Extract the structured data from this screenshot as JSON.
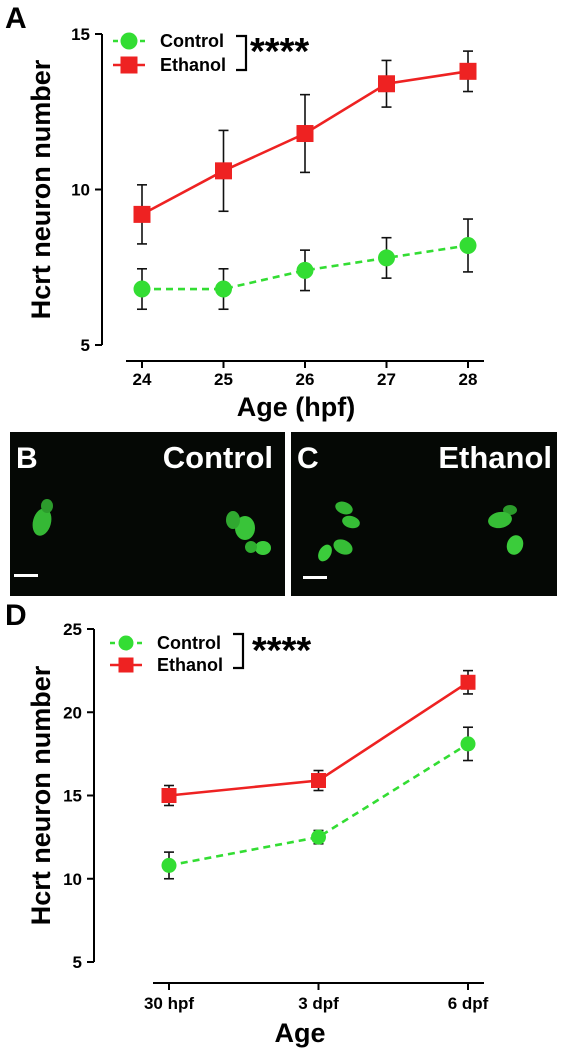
{
  "colors": {
    "control": "#33dd33",
    "ethanol": "#ee2222",
    "image_bg": "#050805",
    "neuron": "#39c439"
  },
  "panels": {
    "b_letter": "B",
    "b_label": "Control",
    "c_letter": "C",
    "c_label": "Ethanol"
  },
  "chart_data": [
    {
      "panel": "A",
      "type": "line",
      "categories": [
        "24",
        "25",
        "26",
        "27",
        "28"
      ],
      "xlabel": "Age (hpf)",
      "ylabel": "Hcrt neuron number",
      "ylim": [
        5,
        15
      ],
      "yticks": [
        "5",
        "10",
        "15"
      ],
      "significance": "****",
      "legend_position": "top-left",
      "grid": false,
      "series": [
        {
          "name": "Control",
          "style": "dashed",
          "marker": "circle",
          "values": [
            6.8,
            6.8,
            7.4,
            7.8,
            8.2
          ],
          "errors": [
            0.65,
            0.65,
            0.65,
            0.65,
            0.85
          ]
        },
        {
          "name": "Ethanol",
          "style": "solid",
          "marker": "square",
          "values": [
            9.2,
            10.6,
            11.8,
            13.4,
            13.8
          ],
          "errors": [
            0.95,
            1.3,
            1.25,
            0.75,
            0.65
          ]
        }
      ]
    },
    {
      "panel": "D",
      "type": "line",
      "categories": [
        "30 hpf",
        "3 dpf",
        "6 dpf"
      ],
      "xlabel": "Age",
      "ylabel": "Hcrt neuron number",
      "ylim": [
        5,
        25
      ],
      "yticks": [
        "5",
        "10",
        "15",
        "20",
        "25"
      ],
      "significance": "****",
      "legend_position": "top-left",
      "grid": false,
      "series": [
        {
          "name": "Control",
          "style": "dashed",
          "marker": "circle",
          "values": [
            10.8,
            12.5,
            18.1
          ],
          "errors": [
            0.8,
            0.4,
            1.0
          ]
        },
        {
          "name": "Ethanol",
          "style": "solid",
          "marker": "square",
          "values": [
            15.0,
            15.9,
            21.8
          ],
          "errors": [
            0.6,
            0.6,
            0.7
          ]
        }
      ]
    }
  ]
}
